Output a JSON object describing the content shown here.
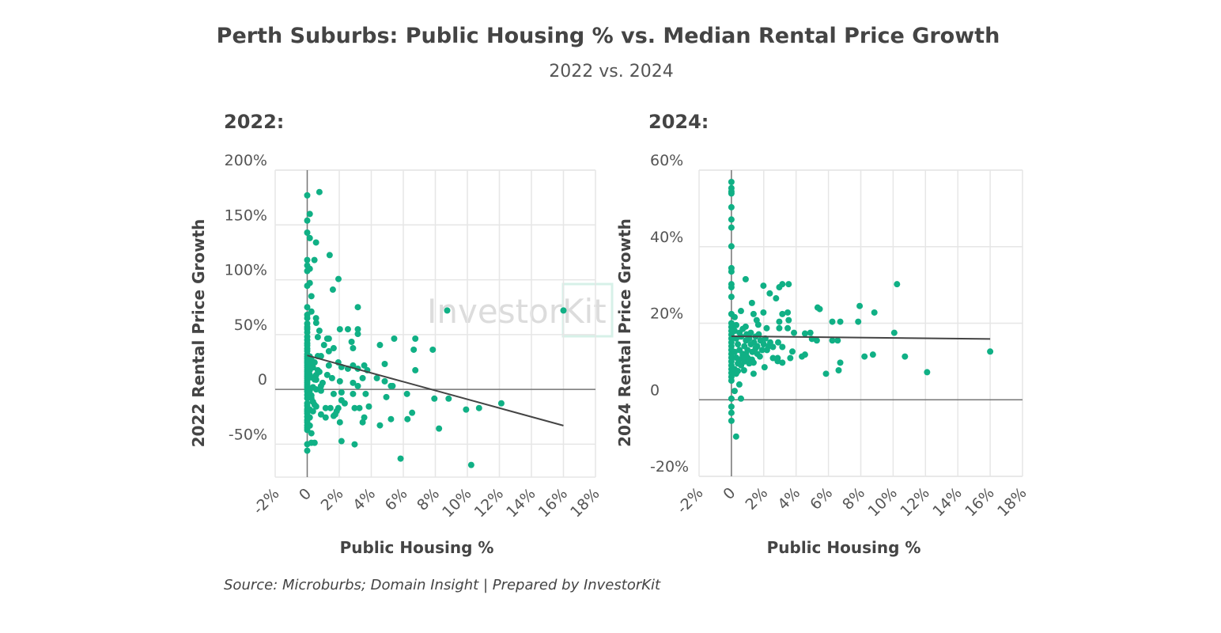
{
  "title": "Perth Suburbs: Public Housing % vs. Median Rental Price Growth",
  "subtitle": "2022 vs. 2024",
  "source": "Source: Microburbs; Domain Insight | Prepared by InvestorKit",
  "watermark": "InvestorKit",
  "colors": {
    "points": "#10b085",
    "trendline": "#444444",
    "grid": "#e6e6e6",
    "zero_axis": "#777777"
  },
  "chart_data": [
    {
      "type": "scatter",
      "panel_label": "2022:",
      "xlabel": "Public Housing %",
      "ylabel": "2022 Rental Price Growth",
      "xlim": [
        -2,
        18
      ],
      "ylim": [
        -80,
        200
      ],
      "x_ticks": [
        -2,
        0,
        2,
        4,
        6,
        8,
        10,
        12,
        14,
        16,
        18
      ],
      "x_tick_labels": [
        "-2%",
        "0",
        "2%",
        "4%",
        "6%",
        "8%",
        "10%",
        "12%",
        "14%",
        "16%",
        "18%"
      ],
      "y_ticks": [
        -50,
        0,
        50,
        100,
        150,
        200
      ],
      "y_tick_labels": [
        "-50%",
        "0",
        "50%",
        "100%",
        "150%",
        "200%"
      ],
      "grid": true,
      "trendline": {
        "x": [
          0,
          16
        ],
        "y": [
          31,
          -33
        ]
      },
      "points": [
        [
          0,
          177
        ],
        [
          0.76,
          180
        ],
        [
          0.16,
          160
        ],
        [
          0,
          154
        ],
        [
          0,
          143
        ],
        [
          0.16,
          138
        ],
        [
          0.55,
          134
        ],
        [
          1.4,
          122.5
        ],
        [
          0.45,
          118
        ],
        [
          0,
          118
        ],
        [
          0,
          113
        ],
        [
          0.16,
          110
        ],
        [
          0,
          108
        ],
        [
          1.95,
          100.7
        ],
        [
          0.16,
          97
        ],
        [
          0,
          94.5
        ],
        [
          1.6,
          91
        ],
        [
          0.26,
          85
        ],
        [
          0,
          75
        ],
        [
          3.16,
          75
        ],
        [
          8.74,
          72
        ],
        [
          16.0,
          72
        ],
        [
          0.26,
          71
        ],
        [
          0,
          68
        ],
        [
          0,
          65
        ],
        [
          0.55,
          65
        ],
        [
          0.56,
          60.7
        ],
        [
          2.04,
          54.9
        ],
        [
          2.54,
          54.9
        ],
        [
          3.16,
          54.9
        ],
        [
          3.16,
          50.6
        ],
        [
          0.76,
          53.5
        ],
        [
          0.66,
          47.7
        ],
        [
          1.25,
          46.3
        ],
        [
          1.35,
          46.3
        ],
        [
          5.43,
          46.3
        ],
        [
          6.75,
          46.3
        ],
        [
          2.77,
          43.4
        ],
        [
          1.05,
          40.5
        ],
        [
          4.54,
          40.5
        ],
        [
          1.65,
          37.6
        ],
        [
          2.86,
          37.6
        ],
        [
          6.65,
          36.2
        ],
        [
          7.84,
          36.2
        ],
        [
          1.35,
          34.8
        ],
        [
          0.66,
          30.4
        ],
        [
          0.86,
          30.4
        ],
        [
          0.46,
          24.6
        ],
        [
          1.94,
          24.6
        ],
        [
          4.84,
          23.2
        ],
        [
          1.35,
          21.8
        ],
        [
          2.86,
          21.8
        ],
        [
          3.56,
          21.8
        ],
        [
          2.14,
          20.4
        ],
        [
          2.54,
          18.9
        ],
        [
          3.16,
          18.9
        ],
        [
          3.75,
          17.5
        ],
        [
          0.66,
          17.5
        ],
        [
          6.75,
          17.5
        ],
        [
          0.16,
          17.5
        ],
        [
          0.16,
          13.2
        ],
        [
          0.76,
          16
        ],
        [
          0.56,
          13.2
        ],
        [
          1.25,
          13.2
        ],
        [
          1.55,
          10.3
        ],
        [
          3.46,
          10.3
        ],
        [
          4.35,
          10.3
        ],
        [
          0.56,
          8.8
        ],
        [
          2.04,
          7.4
        ],
        [
          4.84,
          7.4
        ],
        [
          0.96,
          6
        ],
        [
          2.86,
          6
        ],
        [
          0.86,
          3.1
        ],
        [
          3.16,
          3.1
        ],
        [
          5.23,
          3.1
        ],
        [
          5.33,
          3.1
        ],
        [
          0.86,
          -1.2
        ],
        [
          1.65,
          -4.1
        ],
        [
          2.14,
          -2.7
        ],
        [
          2.86,
          -4.1
        ],
        [
          3.65,
          -4.1
        ],
        [
          6.23,
          -4.1
        ],
        [
          0.26,
          -5.5
        ],
        [
          4.94,
          -7
        ],
        [
          7.94,
          -8.4
        ],
        [
          8.83,
          -8.4
        ],
        [
          2.14,
          -9.9
        ],
        [
          0.36,
          -11.3
        ],
        [
          2.34,
          -12.7
        ],
        [
          12.12,
          -12.7
        ],
        [
          0,
          -12.7
        ],
        [
          0.56,
          -15.6
        ],
        [
          1.15,
          -17
        ],
        [
          1.45,
          -17
        ],
        [
          1.94,
          -17
        ],
        [
          2.96,
          -17
        ],
        [
          3.26,
          -17
        ],
        [
          3.85,
          -15.6
        ],
        [
          0.16,
          -18.4
        ],
        [
          1.84,
          -19.8
        ],
        [
          10.73,
          -17
        ],
        [
          9.92,
          -18.4
        ],
        [
          0.86,
          -22.8
        ],
        [
          1.65,
          -24.2
        ],
        [
          1.15,
          -25.6
        ],
        [
          1.75,
          -22.8
        ],
        [
          3.56,
          -25.6
        ],
        [
          3.46,
          -30
        ],
        [
          5.23,
          -27.1
        ],
        [
          6.26,
          -27.1
        ],
        [
          6.55,
          -21.3
        ],
        [
          0.16,
          -25.6
        ],
        [
          2.04,
          -30
        ],
        [
          4.54,
          -32.8
        ],
        [
          8.23,
          -35.7
        ],
        [
          0,
          -30
        ],
        [
          0,
          -35
        ],
        [
          0,
          -37
        ],
        [
          0,
          -50
        ],
        [
          0.26,
          -48.7
        ],
        [
          0.46,
          -48.7
        ],
        [
          2.14,
          -47.2
        ],
        [
          2.96,
          -50.1
        ],
        [
          0,
          -55.9
        ],
        [
          5.83,
          -63.1
        ],
        [
          10.24,
          -68.9
        ],
        [
          0,
          60
        ],
        [
          0,
          57
        ],
        [
          0,
          55
        ],
        [
          0,
          52
        ],
        [
          0,
          48
        ],
        [
          0,
          45
        ],
        [
          0,
          42
        ],
        [
          0,
          40
        ],
        [
          0,
          37
        ],
        [
          0,
          35
        ],
        [
          0,
          32
        ],
        [
          0,
          30
        ],
        [
          0,
          28
        ],
        [
          0,
          26
        ],
        [
          0,
          24
        ],
        [
          0,
          22
        ],
        [
          0,
          20
        ],
        [
          0,
          18
        ],
        [
          0,
          16
        ],
        [
          0,
          14
        ],
        [
          0,
          12
        ],
        [
          0,
          10
        ],
        [
          0,
          8
        ],
        [
          0,
          6
        ],
        [
          0,
          4
        ],
        [
          0,
          2
        ],
        [
          0,
          0
        ],
        [
          0,
          -2
        ],
        [
          0,
          -5
        ],
        [
          0,
          -8
        ],
        [
          0,
          -15
        ],
        [
          0,
          -18
        ],
        [
          0,
          -20
        ],
        [
          0,
          -22
        ],
        [
          0,
          -25
        ],
        [
          0,
          -28
        ],
        [
          0,
          -33
        ],
        [
          0.16,
          30
        ],
        [
          0.26,
          27
        ],
        [
          0.16,
          22
        ],
        [
          0.36,
          20
        ],
        [
          0.26,
          11
        ],
        [
          0.46,
          9
        ],
        [
          0.36,
          2
        ],
        [
          0.16,
          -1
        ],
        [
          0.56,
          0
        ],
        [
          0.26,
          -8
        ],
        [
          0.46,
          -14
        ],
        [
          0.36,
          -20
        ],
        [
          0.16,
          -33
        ],
        [
          0.26,
          -40
        ]
      ]
    },
    {
      "type": "scatter",
      "panel_label": "2024:",
      "xlabel": "Public Housing %",
      "ylabel": "2024 Rental Price Growth",
      "xlim": [
        -2,
        18
      ],
      "ylim": [
        -20,
        60
      ],
      "x_ticks": [
        -2,
        0,
        2,
        4,
        6,
        8,
        10,
        12,
        14,
        16,
        18
      ],
      "x_tick_labels": [
        "-2%",
        "0",
        "2%",
        "4%",
        "6%",
        "8%",
        "10%",
        "12%",
        "14%",
        "16%",
        "18%"
      ],
      "y_ticks": [
        -20,
        0,
        20,
        40,
        60
      ],
      "y_tick_labels": [
        "-20%",
        "0",
        "20%",
        "40%",
        "60%"
      ],
      "grid": true,
      "trendline": {
        "x": [
          0,
          16
        ],
        "y": [
          16.6,
          15.9
        ]
      },
      "points": [
        [
          0,
          56.9
        ],
        [
          0,
          55.3
        ],
        [
          0,
          54.4
        ],
        [
          0,
          53.9
        ],
        [
          0,
          50.3
        ],
        [
          0,
          47.1
        ],
        [
          0,
          45
        ],
        [
          0,
          40.1
        ],
        [
          0,
          34.4
        ],
        [
          0,
          33.5
        ],
        [
          0,
          30.2
        ],
        [
          0,
          29.4
        ],
        [
          0,
          26.9
        ],
        [
          0,
          22.4
        ],
        [
          0.2,
          21.6
        ],
        [
          0.88,
          31.5
        ],
        [
          1.98,
          29.8
        ],
        [
          2.37,
          27.8
        ],
        [
          2.76,
          26.5
        ],
        [
          2.96,
          29.4
        ],
        [
          3.15,
          30.2
        ],
        [
          3.54,
          30.2
        ],
        [
          10.24,
          30.2
        ],
        [
          1.27,
          25.3
        ],
        [
          0.59,
          23.2
        ],
        [
          1.37,
          22.4
        ],
        [
          1.98,
          22.8
        ],
        [
          3.15,
          22.4
        ],
        [
          3.48,
          22.8
        ],
        [
          5.33,
          24.1
        ],
        [
          5.46,
          23.7
        ],
        [
          7.93,
          24.5
        ],
        [
          8.84,
          22.8
        ],
        [
          1.56,
          20.8
        ],
        [
          2.96,
          20.4
        ],
        [
          3.54,
          20.8
        ],
        [
          6.24,
          20.4
        ],
        [
          6.73,
          20.4
        ],
        [
          7.84,
          20.4
        ],
        [
          0.88,
          19.1
        ],
        [
          2.18,
          18.7
        ],
        [
          2.96,
          18.7
        ],
        [
          3.48,
          18.7
        ],
        [
          1.66,
          19.6
        ],
        [
          3.87,
          17.5
        ],
        [
          4.55,
          17.3
        ],
        [
          4.88,
          17.5
        ],
        [
          10.07,
          17.5
        ],
        [
          0.94,
          17.1
        ],
        [
          1.69,
          17.1
        ],
        [
          4.98,
          15.9
        ],
        [
          5.28,
          15.5
        ],
        [
          6.24,
          15.5
        ],
        [
          6.57,
          15.5
        ],
        [
          2.89,
          15
        ],
        [
          2.57,
          13.8
        ],
        [
          3.15,
          13.8
        ],
        [
          3.77,
          12.6
        ],
        [
          1.76,
          11.3
        ],
        [
          2.57,
          10.9
        ],
        [
          2.86,
          10.9
        ],
        [
          3.64,
          10.9
        ],
        [
          4.36,
          11.3
        ],
        [
          4.55,
          11.8
        ],
        [
          8.23,
          11.3
        ],
        [
          8.75,
          11.8
        ],
        [
          10.73,
          11.3
        ],
        [
          16.0,
          12.6
        ],
        [
          1.27,
          10.5
        ],
        [
          1.37,
          9.7
        ],
        [
          2.86,
          10.1
        ],
        [
          3.15,
          9.7
        ],
        [
          6.73,
          9.7
        ],
        [
          2.05,
          8.5
        ],
        [
          0.78,
          7.7
        ],
        [
          1.37,
          6.8
        ],
        [
          6.63,
          7.7
        ],
        [
          5.85,
          6.8
        ],
        [
          12.1,
          7.2
        ],
        [
          0.29,
          6.8
        ],
        [
          0.49,
          4
        ],
        [
          0.2,
          2.3
        ],
        [
          0.59,
          0.3
        ],
        [
          0,
          0.3
        ],
        [
          0,
          -1.8
        ],
        [
          0,
          -3.4
        ],
        [
          0,
          -5.5
        ],
        [
          0.29,
          -9.6
        ],
        [
          0,
          20
        ],
        [
          0,
          19
        ],
        [
          0,
          18
        ],
        [
          0,
          17
        ],
        [
          0,
          16
        ],
        [
          0,
          15
        ],
        [
          0,
          14
        ],
        [
          0,
          13
        ],
        [
          0,
          12
        ],
        [
          0,
          11
        ],
        [
          0,
          10
        ],
        [
          0,
          9
        ],
        [
          0,
          8
        ],
        [
          0,
          7
        ],
        [
          0,
          6
        ],
        [
          0,
          5
        ],
        [
          0.2,
          18
        ],
        [
          0.3,
          16
        ],
        [
          0.4,
          14.5
        ],
        [
          0.5,
          13
        ],
        [
          0.6,
          16.5
        ],
        [
          0.7,
          12
        ],
        [
          0.8,
          14
        ],
        [
          0.9,
          15.5
        ],
        [
          1.0,
          13
        ],
        [
          1.1,
          16
        ],
        [
          1.2,
          14.5
        ],
        [
          1.3,
          12.5
        ],
        [
          1.4,
          15
        ],
        [
          1.5,
          13.5
        ],
        [
          1.6,
          14
        ],
        [
          1.8,
          15.5
        ],
        [
          1.9,
          13
        ],
        [
          2.0,
          14.5
        ],
        [
          2.1,
          16
        ],
        [
          2.3,
          14
        ],
        [
          0.3,
          11
        ],
        [
          0.4,
          9.5
        ],
        [
          0.5,
          10.5
        ],
        [
          0.6,
          9
        ],
        [
          0.7,
          11.5
        ],
        [
          0.8,
          10
        ],
        [
          1.0,
          11
        ],
        [
          1.1,
          9.5
        ],
        [
          0.2,
          8
        ],
        [
          0.4,
          7.5
        ],
        [
          0.2,
          12.5
        ],
        [
          0.3,
          19.5
        ],
        [
          0.5,
          17.5
        ],
        [
          0.7,
          18.5
        ],
        [
          1.2,
          17.5
        ],
        [
          1.5,
          16.5
        ],
        [
          0.9,
          12
        ],
        [
          1.6,
          12
        ],
        [
          2.2,
          13
        ],
        [
          2.4,
          15
        ]
      ]
    }
  ]
}
